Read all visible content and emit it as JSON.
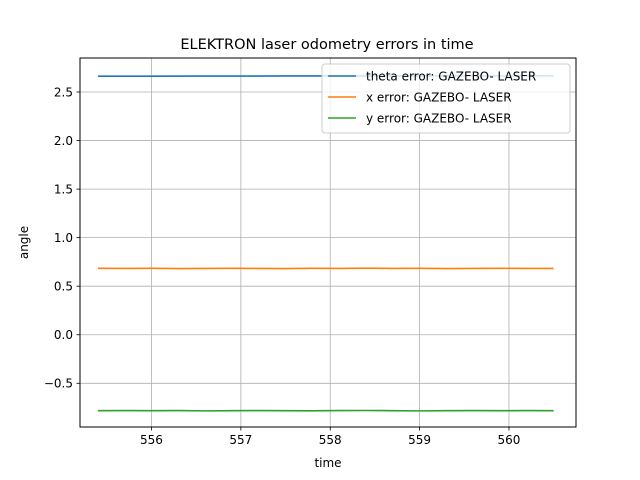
{
  "chart_data": {
    "type": "line",
    "title": "ELEKTRON laser odometry errors in time",
    "xlabel": "time",
    "ylabel": "angle",
    "xlim": [
      555.2,
      560.75
    ],
    "ylim": [
      -0.95,
      2.85
    ],
    "xticks": [
      556,
      557,
      558,
      559,
      560
    ],
    "xtick_labels": [
      "556",
      "557",
      "558",
      "559",
      "560"
    ],
    "yticks": [
      -0.5,
      0.0,
      0.5,
      1.0,
      1.5,
      2.0,
      2.5
    ],
    "ytick_labels": [
      "−0.5",
      "0.0",
      "0.5",
      "1.0",
      "1.5",
      "2.0",
      "2.5"
    ],
    "grid": true,
    "legend_position": "top-right",
    "series": [
      {
        "name": "theta error: GAZEBO- LASER",
        "color": "#1f77b4",
        "x": [
          555.4,
          556.0,
          556.5,
          557.0,
          557.5,
          558.0,
          558.5,
          559.0,
          559.5,
          560.0,
          560.5
        ],
        "y": [
          2.663,
          2.663,
          2.664,
          2.664,
          2.665,
          2.665,
          2.665,
          2.666,
          2.666,
          2.666,
          2.667
        ]
      },
      {
        "name": "x error: GAZEBO- LASER",
        "color": "#ff7f0e",
        "x": [
          555.4,
          555.7,
          556.0,
          556.3,
          556.6,
          556.9,
          557.2,
          557.5,
          557.8,
          558.1,
          558.4,
          558.7,
          559.0,
          559.3,
          559.6,
          559.9,
          560.2,
          560.5
        ],
        "y": [
          0.684,
          0.683,
          0.684,
          0.682,
          0.683,
          0.684,
          0.683,
          0.682,
          0.684,
          0.683,
          0.685,
          0.683,
          0.684,
          0.682,
          0.683,
          0.684,
          0.683,
          0.683
        ]
      },
      {
        "name": "y error: GAZEBO- LASER",
        "color": "#2ca02c",
        "x": [
          555.4,
          555.7,
          556.0,
          556.3,
          556.6,
          556.9,
          557.2,
          557.5,
          557.8,
          558.1,
          558.4,
          558.7,
          559.0,
          559.3,
          559.6,
          559.9,
          560.2,
          560.5
        ],
        "y": [
          -0.782,
          -0.781,
          -0.782,
          -0.781,
          -0.784,
          -0.782,
          -0.781,
          -0.782,
          -0.783,
          -0.781,
          -0.78,
          -0.782,
          -0.784,
          -0.782,
          -0.781,
          -0.782,
          -0.781,
          -0.782
        ]
      }
    ]
  }
}
